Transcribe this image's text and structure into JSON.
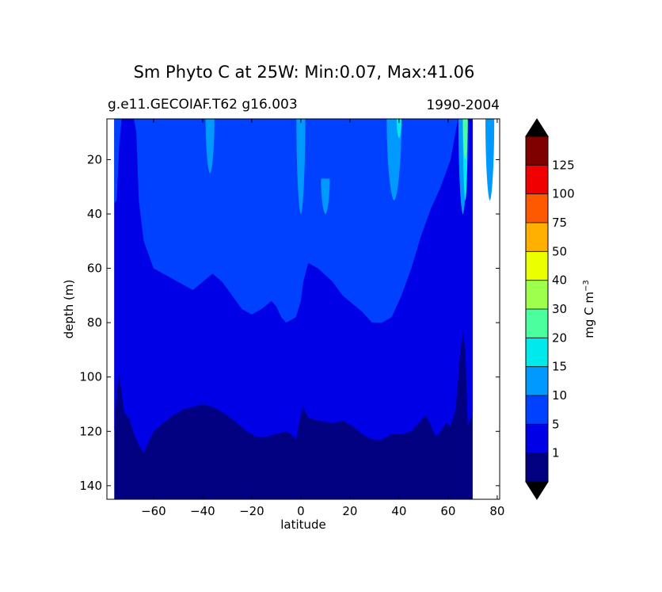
{
  "chart_data": {
    "type": "contour",
    "title": "Sm Phyto C at 25W: Min:0.07, Max:41.06",
    "subtitle_left": "g.e11.GECOIAF.T62 g16.003",
    "subtitle_right": "1990-2004",
    "xlabel": "latitude",
    "ylabel": "depth (m)",
    "xlim": [
      -79,
      81
    ],
    "ylim": [
      145,
      5
    ],
    "x_ticks": [
      -60,
      -40,
      -20,
      0,
      20,
      40,
      60,
      80
    ],
    "x_tick_labels": [
      "−60",
      "−40",
      "−20",
      "0",
      "20",
      "40",
      "60",
      "80"
    ],
    "y_ticks": [
      20,
      40,
      60,
      80,
      100,
      120,
      140
    ],
    "y_tick_labels": [
      "20",
      "40",
      "60",
      "80",
      "100",
      "120",
      "140"
    ],
    "data_extent_x": [
      -76,
      70
    ],
    "colorbar": {
      "label": "mg C m",
      "label_superscript": "−3",
      "levels": [
        0,
        1,
        5,
        10,
        15,
        20,
        30,
        40,
        50,
        75,
        100,
        125,
        150
      ],
      "tick_labels": [
        "1",
        "5",
        "10",
        "15",
        "20",
        "30",
        "40",
        "50",
        "75",
        "100",
        "125"
      ],
      "colors": [
        "#000080",
        "#0000e6",
        "#0040ff",
        "#0099ff",
        "#00eaeb",
        "#4cff9e",
        "#9eff4c",
        "#ebff00",
        "#ffb000",
        "#ff5900",
        "#f00000",
        "#800000"
      ],
      "extend": "both",
      "extend_colors": {
        "low": "#000000",
        "high": "#000000"
      }
    },
    "contours": [
      {
        "level": 1,
        "boundary": [
          [
            -76,
            120
          ],
          [
            -75,
            105
          ],
          [
            -74,
            99
          ],
          [
            -72,
            113
          ],
          [
            -70,
            115
          ],
          [
            -68,
            121
          ],
          [
            -66,
            125
          ],
          [
            -64,
            128
          ],
          [
            -62,
            124
          ],
          [
            -60,
            120
          ],
          [
            -56,
            117
          ],
          [
            -52,
            114
          ],
          [
            -48,
            112
          ],
          [
            -44,
            111
          ],
          [
            -40,
            110
          ],
          [
            -36,
            111
          ],
          [
            -30,
            114
          ],
          [
            -26,
            117
          ],
          [
            -22,
            120
          ],
          [
            -18,
            122
          ],
          [
            -14,
            122
          ],
          [
            -10,
            121
          ],
          [
            -6,
            120
          ],
          [
            -4,
            121
          ],
          [
            -2,
            123
          ],
          [
            0,
            114
          ],
          [
            1,
            111
          ],
          [
            3,
            115
          ],
          [
            7,
            116
          ],
          [
            13,
            117
          ],
          [
            17,
            116
          ],
          [
            21,
            118
          ],
          [
            25,
            121
          ],
          [
            29,
            123
          ],
          [
            33,
            123
          ],
          [
            37,
            121
          ],
          [
            41,
            121
          ],
          [
            45,
            120
          ],
          [
            49,
            116
          ],
          [
            51,
            114
          ],
          [
            53,
            118
          ],
          [
            55,
            122
          ],
          [
            57,
            120
          ],
          [
            59,
            117
          ],
          [
            61,
            118
          ],
          [
            63,
            112
          ],
          [
            64,
            102
          ],
          [
            65,
            90
          ],
          [
            66,
            84
          ],
          [
            67,
            90
          ],
          [
            68,
            118
          ],
          [
            69,
            116
          ],
          [
            70,
            113
          ]
        ]
      },
      {
        "level": 5,
        "boundary": [
          [
            -76,
            36
          ],
          [
            -75,
            35
          ],
          [
            -74,
            15
          ],
          [
            -73,
            5
          ],
          [
            -68,
            5
          ],
          [
            -67,
            10
          ],
          [
            -66,
            35
          ],
          [
            -64,
            50
          ],
          [
            -62,
            55
          ],
          [
            -60,
            60
          ],
          [
            -56,
            62
          ],
          [
            -52,
            64
          ],
          [
            -48,
            66
          ],
          [
            -44,
            68
          ],
          [
            -40,
            65
          ],
          [
            -36,
            62
          ],
          [
            -32,
            65
          ],
          [
            -28,
            70
          ],
          [
            -24,
            75
          ],
          [
            -20,
            77
          ],
          [
            -16,
            75
          ],
          [
            -12,
            72
          ],
          [
            -10,
            74
          ],
          [
            -8,
            78
          ],
          [
            -6,
            80
          ],
          [
            -2,
            78
          ],
          [
            0,
            72
          ],
          [
            1,
            65
          ],
          [
            3,
            58
          ],
          [
            7,
            60
          ],
          [
            13,
            65
          ],
          [
            17,
            70
          ],
          [
            21,
            73
          ],
          [
            25,
            76
          ],
          [
            29,
            80
          ],
          [
            33,
            80
          ],
          [
            37,
            78
          ],
          [
            41,
            70
          ],
          [
            45,
            60
          ],
          [
            49,
            48
          ],
          [
            53,
            38
          ],
          [
            57,
            30
          ],
          [
            59,
            25
          ],
          [
            61,
            20
          ],
          [
            63,
            10
          ],
          [
            64,
            5
          ]
        ]
      },
      {
        "level": 10,
        "patches": [
          [
            -37,
            5,
            25
          ],
          [
            0,
            5,
            40
          ],
          [
            10,
            27,
            40
          ],
          [
            38,
            5,
            35
          ],
          [
            66,
            5,
            40
          ],
          [
            77,
            5,
            35
          ]
        ]
      },
      {
        "level": 15,
        "patches": [
          [
            40,
            5,
            12
          ],
          [
            67,
            5,
            35
          ]
        ]
      },
      {
        "level": 20,
        "patches": [
          [
            67,
            5,
            20
          ]
        ]
      }
    ]
  }
}
